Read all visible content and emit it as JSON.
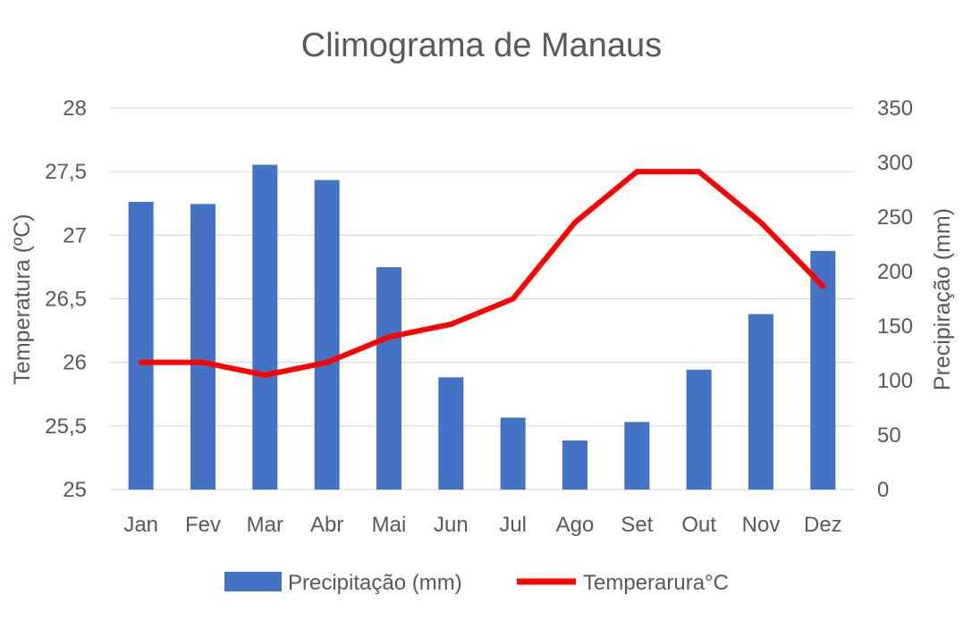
{
  "chart_data": {
    "type": "bar",
    "title": "Climograma de Manaus",
    "categories": [
      "Jan",
      "Fev",
      "Mar",
      "Abr",
      "Mai",
      "Jun",
      "Jul",
      "Ago",
      "Set",
      "Out",
      "Nov",
      "Dez"
    ],
    "series": [
      {
        "name": "Precipitação (mm)",
        "type": "bar",
        "axis": "right",
        "color": "#4472C4",
        "values": [
          264,
          262,
          298,
          284,
          204,
          103,
          66,
          45,
          62,
          110,
          161,
          219
        ]
      },
      {
        "name": "Temperarura°C",
        "type": "line",
        "axis": "left",
        "color": "#FF0000",
        "values": [
          26.0,
          26.0,
          25.9,
          26.0,
          26.2,
          26.3,
          26.5,
          27.1,
          27.5,
          27.5,
          27.1,
          26.6
        ]
      }
    ],
    "left_axis": {
      "label": "Temperatura (ºC)",
      "min": 25,
      "max": 28,
      "step": 0.5,
      "ticks": [
        "25",
        "25,5",
        "26",
        "26,5",
        "27",
        "27,5",
        "28"
      ]
    },
    "right_axis": {
      "label": "Precipiração (mm)",
      "min": 0,
      "max": 350,
      "step": 50,
      "ticks": [
        "0",
        "50",
        "100",
        "150",
        "200",
        "250",
        "300",
        "350"
      ]
    },
    "grid": true,
    "legend_position": "bottom"
  }
}
